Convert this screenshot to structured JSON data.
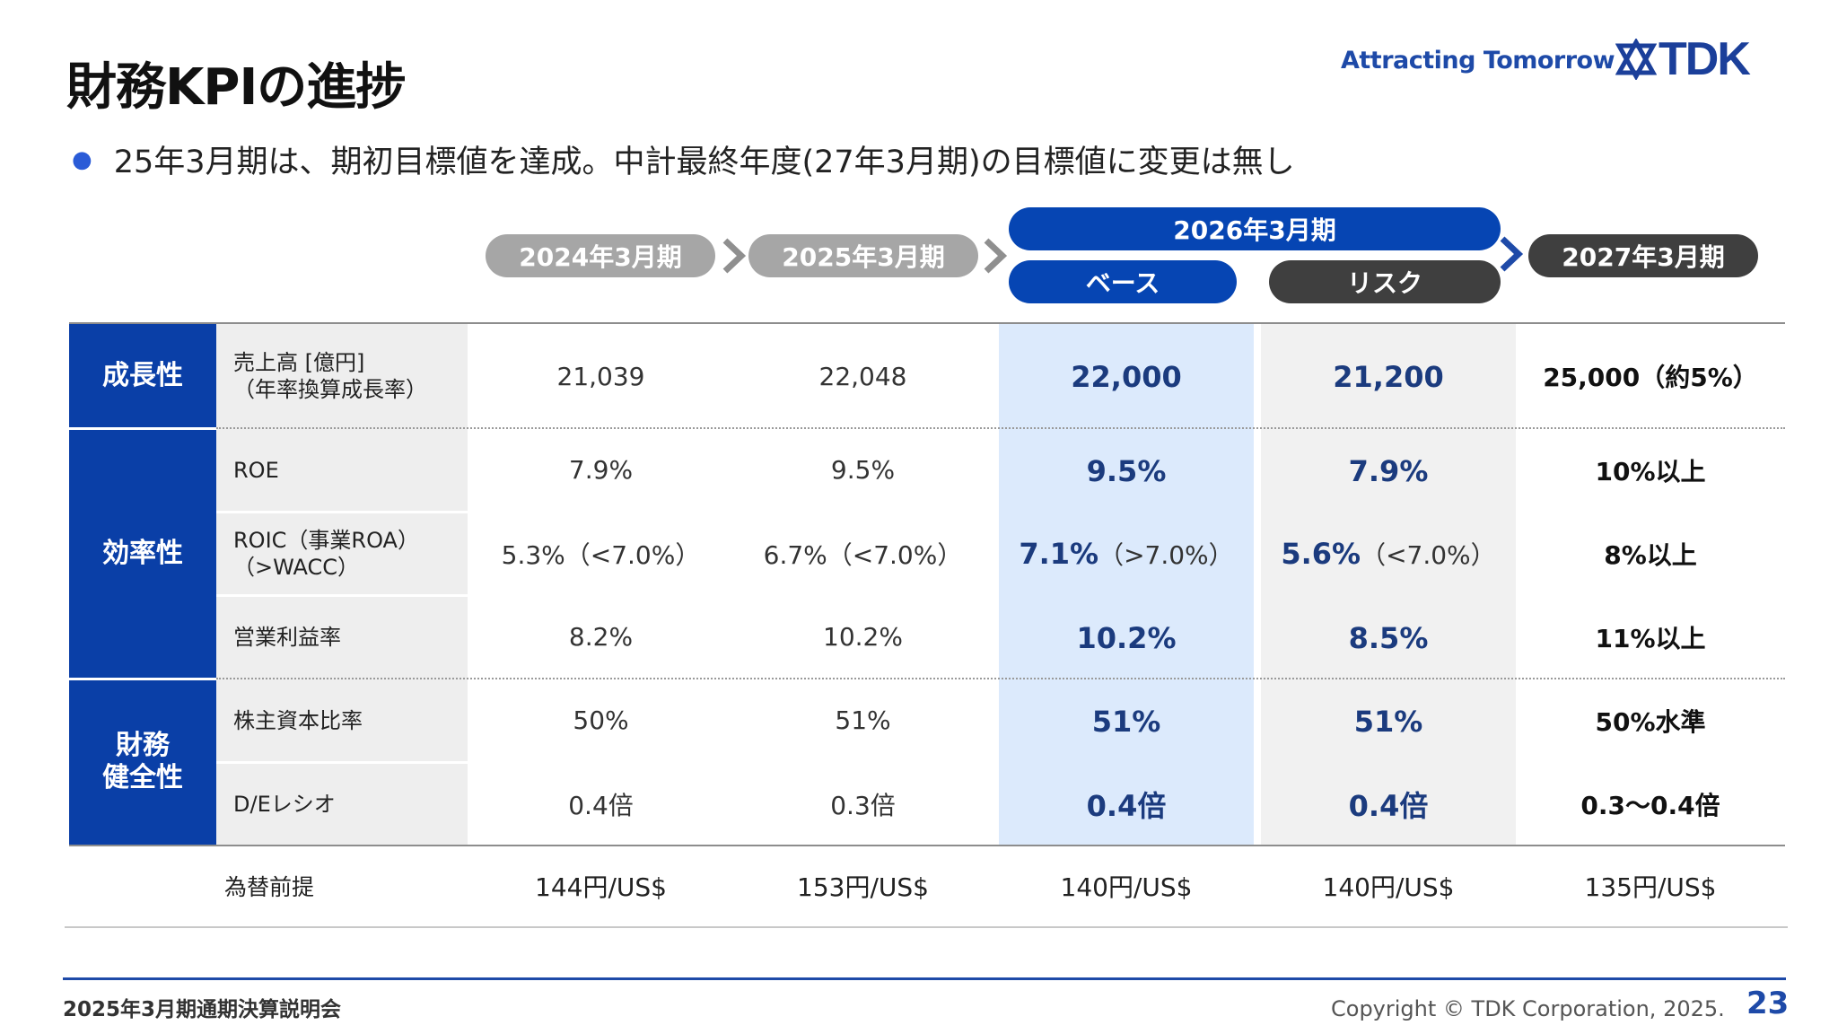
{
  "header": {
    "title": "財務KPIの進捗",
    "tagline": "Attracting Tomorrow",
    "logo_text": "TDK",
    "bullet": "25年3月期は、期初目標値を達成。中計最終年度(27年3月期)の目標値に変更は無し"
  },
  "periods": {
    "fy2024": "2024年3月期",
    "fy2025": "2025年3月期",
    "fy2026": "2026年3月期",
    "fy2026_base": "ベース",
    "fy2026_risk": "リスク",
    "fy2027": "2027年3月期"
  },
  "categories": {
    "growth": "成長性",
    "efficiency": "効率性",
    "financial_1": "財務",
    "financial_2": "健全性"
  },
  "rows": [
    {
      "label": "売上高 [億円]",
      "label2": "（年率換算成長率）",
      "fy2024": "21,039",
      "fy2025": "22,048",
      "base": "22,000",
      "risk": "21,200",
      "target": "25,000（約5%）"
    },
    {
      "label": "ROE",
      "fy2024": "7.9%",
      "fy2025": "9.5%",
      "base": "9.5%",
      "risk": "7.9%",
      "target": "10%以上"
    },
    {
      "label": "ROIC（事業ROA）",
      "label2": "（>WACC）",
      "fy2024": "5.3%（<7.0%）",
      "fy2025": "6.7%（<7.0%）",
      "base": "7.1%",
      "base_note": "（>7.0%）",
      "risk": "5.6%",
      "risk_note": "（<7.0%）",
      "target": "8%以上"
    },
    {
      "label": "営業利益率",
      "fy2024": "8.2%",
      "fy2025": "10.2%",
      "base": "10.2%",
      "risk": "8.5%",
      "target": "11%以上"
    },
    {
      "label": "株主資本比率",
      "fy2024": "50%",
      "fy2025": "51%",
      "base": "51%",
      "risk": "51%",
      "target": "50%水準"
    },
    {
      "label": "D/Eレシオ",
      "fy2024": "0.4倍",
      "fy2025": "0.3倍",
      "base": "0.4倍",
      "risk": "0.4倍",
      "target": "0.3〜0.4倍"
    }
  ],
  "fx": {
    "label": "為替前提",
    "fy2024": "144円/US$",
    "fy2025": "153円/US$",
    "base": "140円/US$",
    "risk": "140円/US$",
    "target": "135円/US$"
  },
  "footer": {
    "event": "2025年3月期通期決算説明会",
    "copyright": "Copyright  © TDK Corporation, 2025.",
    "page_number": "23"
  },
  "colors": {
    "brand_blue": "#0a3fa7",
    "base_highlight": "#dceafc",
    "pill_gray": "#a6a6a6",
    "pill_dark": "#3f3f3f"
  }
}
